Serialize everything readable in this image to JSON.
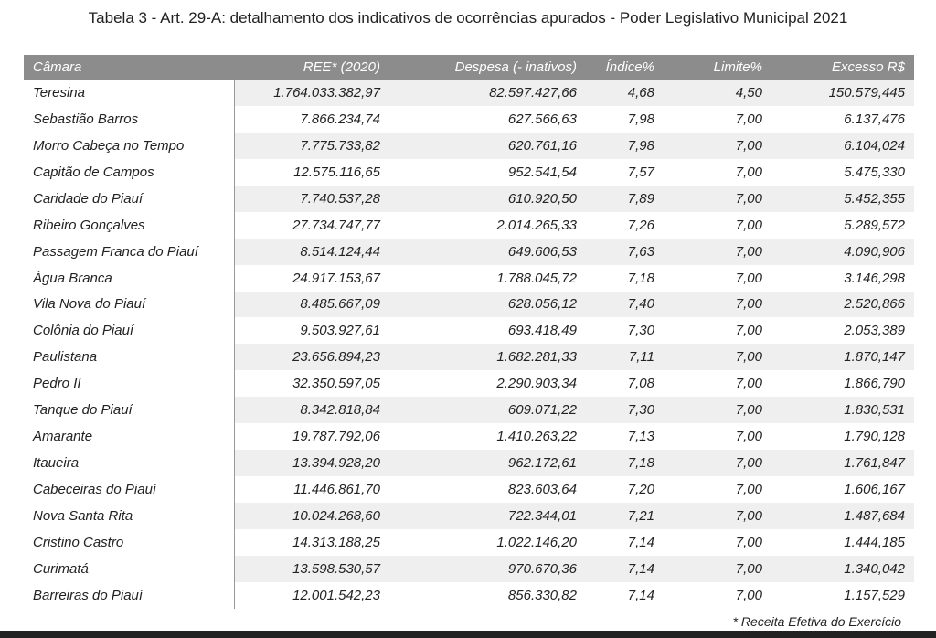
{
  "title": "Tabela 3 - Art. 29-A: detalhamento dos indicativos de ocorrências apurados - Poder Legislativo Municipal 2021",
  "columns": [
    "Câmara",
    "REE* (2020)",
    "Despesa (- inativos)",
    "Índice%",
    "Limite%",
    "Excesso R$"
  ],
  "rows": [
    [
      "Teresina",
      "1.764.033.382,97",
      "82.597.427,66",
      "4,68",
      "4,50",
      "150.579,445"
    ],
    [
      "Sebastião Barros",
      "7.866.234,74",
      "627.566,63",
      "7,98",
      "7,00",
      "6.137,476"
    ],
    [
      "Morro Cabeça no Tempo",
      "7.775.733,82",
      "620.761,16",
      "7,98",
      "7,00",
      "6.104,024"
    ],
    [
      "Capitão de Campos",
      "12.575.116,65",
      "952.541,54",
      "7,57",
      "7,00",
      "5.475,330"
    ],
    [
      "Caridade do Piauí",
      "7.740.537,28",
      "610.920,50",
      "7,89",
      "7,00",
      "5.452,355"
    ],
    [
      "Ribeiro Gonçalves",
      "27.734.747,77",
      "2.014.265,33",
      "7,26",
      "7,00",
      "5.289,572"
    ],
    [
      "Passagem Franca do Piauí",
      "8.514.124,44",
      "649.606,53",
      "7,63",
      "7,00",
      "4.090,906"
    ],
    [
      "Água Branca",
      "24.917.153,67",
      "1.788.045,72",
      "7,18",
      "7,00",
      "3.146,298"
    ],
    [
      "Vila Nova do Piauí",
      "8.485.667,09",
      "628.056,12",
      "7,40",
      "7,00",
      "2.520,866"
    ],
    [
      "Colônia do Piauí",
      "9.503.927,61",
      "693.418,49",
      "7,30",
      "7,00",
      "2.053,389"
    ],
    [
      "Paulistana",
      "23.656.894,23",
      "1.682.281,33",
      "7,11",
      "7,00",
      "1.870,147"
    ],
    [
      "Pedro II",
      "32.350.597,05",
      "2.290.903,34",
      "7,08",
      "7,00",
      "1.866,790"
    ],
    [
      "Tanque do Piauí",
      "8.342.818,84",
      "609.071,22",
      "7,30",
      "7,00",
      "1.830,531"
    ],
    [
      "Amarante",
      "19.787.792,06",
      "1.410.263,22",
      "7,13",
      "7,00",
      "1.790,128"
    ],
    [
      "Itaueira",
      "13.394.928,20",
      "962.172,61",
      "7,18",
      "7,00",
      "1.761,847"
    ],
    [
      "Cabeceiras do Piauí",
      "11.446.861,70",
      "823.603,64",
      "7,20",
      "7,00",
      "1.606,167"
    ],
    [
      "Nova Santa Rita",
      "10.024.268,60",
      "722.344,01",
      "7,21",
      "7,00",
      "1.487,684"
    ],
    [
      "Cristino Castro",
      "14.313.188,25",
      "1.022.146,20",
      "7,14",
      "7,00",
      "1.444,185"
    ],
    [
      "Curimatá",
      "13.598.530,57",
      "970.670,36",
      "7,14",
      "7,00",
      "1.340,042"
    ],
    [
      "Barreiras do Piauí",
      "12.001.542,23",
      "856.330,82",
      "7,14",
      "7,00",
      "1.157,529"
    ]
  ],
  "footnote": "* Receita Efetiva do Exercício"
}
